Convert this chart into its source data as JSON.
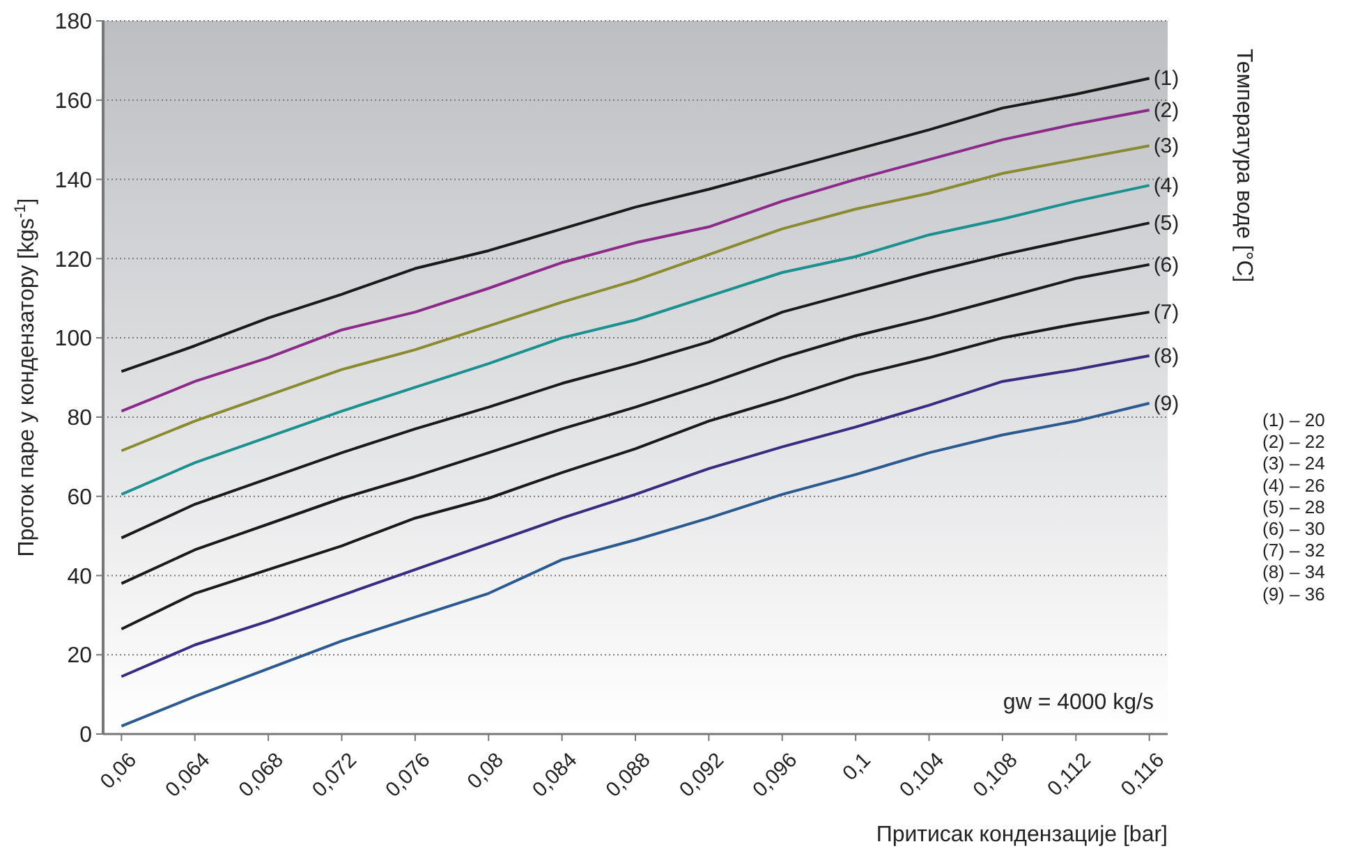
{
  "chart_data": {
    "type": "line",
    "xlabel": "Притисак кондензације [bar]",
    "ylabel": "Проток паре у кондензатору [kgs$^{-1}$]",
    "x": [
      0.06,
      0.064,
      0.068,
      0.072,
      0.076,
      0.08,
      0.084,
      0.088,
      0.092,
      0.096,
      0.1,
      0.104,
      0.108,
      0.112,
      0.116
    ],
    "series": [
      {
        "name": "(1)",
        "color": "#1a1a1a",
        "values": [
          91.5,
          98,
          105,
          111,
          117.5,
          122,
          127.5,
          133,
          137.5,
          142.5,
          147.5,
          152.5,
          158,
          161.5,
          165.5
        ]
      },
      {
        "name": "(2)",
        "color": "#8b2a8a",
        "values": [
          81.5,
          89,
          95,
          102,
          106.5,
          112.5,
          119,
          124,
          128,
          134.5,
          140,
          145,
          150,
          154,
          157.5
        ]
      },
      {
        "name": "(3)",
        "color": "#8a8a30",
        "values": [
          71.5,
          79,
          85.5,
          92,
          97,
          103,
          109,
          114.5,
          121,
          127.5,
          132.5,
          136.5,
          141.5,
          145,
          148.5
        ]
      },
      {
        "name": "(4)",
        "color": "#1a9090",
        "values": [
          60.5,
          68.5,
          75,
          81.5,
          87.5,
          93.5,
          100,
          104.5,
          110.5,
          116.5,
          120.5,
          126,
          130,
          134.5,
          138.5
        ]
      },
      {
        "name": "(5)",
        "color": "#1a1a1a",
        "values": [
          49.5,
          58,
          64.5,
          71,
          77,
          82.5,
          88.5,
          93.5,
          99,
          106.5,
          111.5,
          116.5,
          121,
          125,
          129
        ]
      },
      {
        "name": "(6)",
        "color": "#1a1a1a",
        "values": [
          38,
          46.5,
          53,
          59.5,
          65,
          71,
          77,
          82.5,
          88.5,
          95,
          100.5,
          105,
          110,
          115,
          118.5
        ]
      },
      {
        "name": "(7)",
        "color": "#1a1a1a",
        "values": [
          26.5,
          35.5,
          41.5,
          47.5,
          54.5,
          59.5,
          66,
          72,
          79,
          84.5,
          90.5,
          95,
          100,
          103.5,
          106.5
        ]
      },
      {
        "name": "(8)",
        "color": "#3a2a80",
        "values": [
          14.5,
          22.5,
          28.5,
          35,
          41.5,
          48,
          54.5,
          60.5,
          67,
          72.5,
          77.5,
          83,
          89,
          92,
          95.5
        ]
      },
      {
        "name": "(9)",
        "color": "#2a5a90",
        "values": [
          2,
          9.5,
          16.5,
          23.5,
          29.5,
          35.5,
          44,
          49,
          54.5,
          60.5,
          65.5,
          71,
          75.5,
          79,
          83.5
        ]
      }
    ],
    "xlim": [
      0.059,
      0.117
    ],
    "xticks": [
      {
        "value": 0.06,
        "label": "0,06"
      },
      {
        "value": 0.064,
        "label": "0,064"
      },
      {
        "value": 0.068,
        "label": "0,068"
      },
      {
        "value": 0.072,
        "label": "0,072"
      },
      {
        "value": 0.076,
        "label": "0,076"
      },
      {
        "value": 0.08,
        "label": "0,08"
      },
      {
        "value": 0.084,
        "label": "0,084"
      },
      {
        "value": 0.088,
        "label": "0,088"
      },
      {
        "value": 0.092,
        "label": "0,092"
      },
      {
        "value": 0.096,
        "label": "0,096"
      },
      {
        "value": 0.1,
        "label": "0,1"
      },
      {
        "value": 0.104,
        "label": "0,104"
      },
      {
        "value": 0.108,
        "label": "0,108"
      },
      {
        "value": 0.112,
        "label": "0,112"
      },
      {
        "value": 0.116,
        "label": "0,116"
      }
    ],
    "ylim": [
      0,
      180
    ],
    "yticks": [
      0,
      20,
      40,
      60,
      80,
      100,
      120,
      140,
      160,
      180
    ],
    "grid": "y",
    "annotations": [
      "Температура воде [°C]",
      "(1) – 20",
      "(2) – 22",
      "(3) – 24",
      "(4) – 26",
      "(5) – 28",
      "(6) – 30",
      "(7) – 32",
      "(8) – 34",
      "(9) – 36",
      "gw = 4000 kg/s"
    ]
  }
}
